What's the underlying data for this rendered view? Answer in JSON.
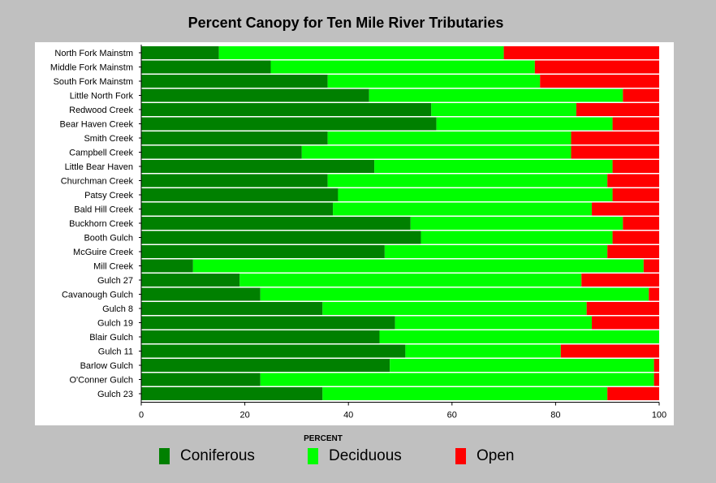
{
  "chart_data": {
    "type": "bar",
    "orientation": "horizontal",
    "stacked": true,
    "title": "Percent Canopy for Ten Mile River Tributaries",
    "xlabel": "PERCENT",
    "ylabel": "",
    "xlim": [
      0,
      100
    ],
    "xticks": [
      0,
      20,
      40,
      60,
      80,
      100
    ],
    "grid": false,
    "legend_position": "bottom",
    "categories": [
      "North Fork Mainstm",
      "Middle Fork Mainstm",
      "South Fork Mainstm",
      "Little North Fork",
      "Redwood Creek",
      "Bear Haven Creek",
      "Smith Creek",
      "Campbell Creek",
      "Little Bear Haven",
      "Churchman Creek",
      "Patsy Creek",
      "Bald Hill Creek",
      "Buckhorn Creek",
      "Booth Gulch",
      "McGuire Creek",
      "Mill Creek",
      "Gulch 27",
      "Cavanough Gulch",
      "Gulch 8",
      "Gulch 19",
      "Blair Gulch",
      "Gulch 11",
      "Barlow Gulch",
      "O'Conner Gulch",
      "Gulch 23"
    ],
    "series": [
      {
        "name": "Coniferous",
        "color": "#008000",
        "values": [
          15,
          25,
          36,
          44,
          56,
          57,
          36,
          31,
          45,
          36,
          38,
          37,
          52,
          54,
          47,
          10,
          19,
          23,
          35,
          49,
          46,
          51,
          48,
          23,
          35
        ]
      },
      {
        "name": "Deciduous",
        "color": "#00ff00",
        "values": [
          55,
          51,
          41,
          49,
          28,
          34,
          47,
          52,
          46,
          54,
          53,
          50,
          41,
          37,
          43,
          87,
          66,
          75,
          51,
          38,
          54,
          30,
          51,
          76,
          55
        ]
      },
      {
        "name": "Open",
        "color": "#ff0000",
        "values": [
          30,
          24,
          23,
          7,
          16,
          9,
          17,
          17,
          9,
          10,
          9,
          13,
          7,
          9,
          10,
          3,
          15,
          2,
          14,
          13,
          0,
          19,
          1,
          1,
          10
        ]
      }
    ]
  }
}
